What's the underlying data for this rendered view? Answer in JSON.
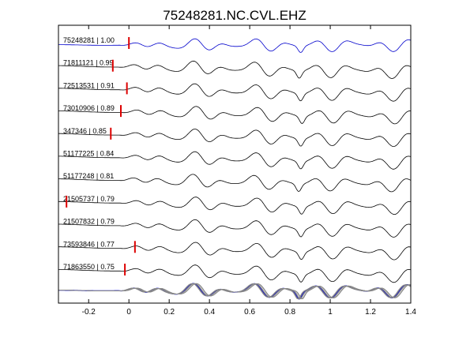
{
  "chart_data": {
    "type": "line",
    "title": "75248281.NC.CVL.EHZ",
    "xlabel": "",
    "ylabel": "",
    "xlim": [
      -0.35,
      1.4
    ],
    "x_ticks": [
      -0.2,
      0,
      0.2,
      0.4,
      0.6,
      0.8,
      1,
      1.2,
      1.4
    ],
    "x_tick_labels": [
      "-0.2",
      "0",
      "0.2",
      "0.4",
      "0.6",
      "0.8",
      "1",
      "1.2",
      "1.4"
    ],
    "grid": false,
    "legend": "none",
    "colors": {
      "reference_trace": "#0000cc",
      "trace": "#000000",
      "pick_marker": "#dd0000",
      "stack_trace": "#888888",
      "stack_reference": "#0000cc"
    },
    "traces": [
      {
        "label": "75248281 | 1.00",
        "pick_time": 0.0,
        "reference": true
      },
      {
        "label": "71811121 | 0.99",
        "pick_time": -0.08
      },
      {
        "label": "72513531 | 0.91",
        "pick_time": -0.01
      },
      {
        "label": "73010906 | 0.89",
        "pick_time": -0.04
      },
      {
        "label": "347346 | 0.85",
        "pick_time": -0.09
      },
      {
        "label": "51177225 | 0.84"
      },
      {
        "label": "51177248 | 0.81"
      },
      {
        "label": "21505737 | 0.79",
        "pick_time": -0.31
      },
      {
        "label": "21507832 | 0.79"
      },
      {
        "label": "73593846 | 0.77",
        "pick_time": 0.03
      },
      {
        "label": "71863550 | 0.75",
        "pick_time": -0.02
      }
    ]
  }
}
